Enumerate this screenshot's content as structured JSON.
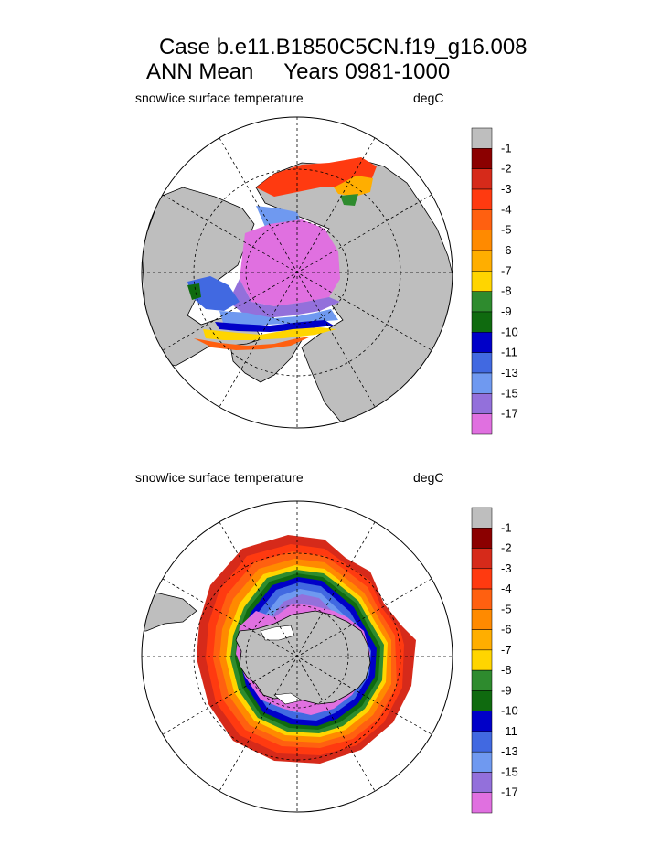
{
  "header": {
    "case_title": "Case b.e11.B1850C5CN.f19_g16.008",
    "subtitle_left": "ANN Mean",
    "subtitle_right": "Years 0981-1000"
  },
  "chart_data": [
    {
      "type": "heatmap",
      "projection": "polar-stereographic",
      "hemisphere": "north",
      "title": "snow/ice surface temperature",
      "units": "degC",
      "legend_placement": "right"
    },
    {
      "type": "heatmap",
      "projection": "polar-stereographic",
      "hemisphere": "south",
      "title": "snow/ice surface temperature",
      "units": "degC",
      "legend_placement": "right"
    }
  ],
  "colorbar": {
    "labels": [
      "-1",
      "-2",
      "-3",
      "-4",
      "-5",
      "-6",
      "-7",
      "-8",
      "-9",
      "-10",
      "-11",
      "-13",
      "-15",
      "-17"
    ],
    "colors": [
      "#8b0000",
      "#d62a1a",
      "#ff3a10",
      "#ff6010",
      "#ff8a00",
      "#ffae00",
      "#ffd500",
      "#2e8b2e",
      "#0f6a0f",
      "#0000c8",
      "#4169e1",
      "#6f99f0",
      "#9370db",
      "#e070e0"
    ],
    "land_color": "#bebebe"
  }
}
